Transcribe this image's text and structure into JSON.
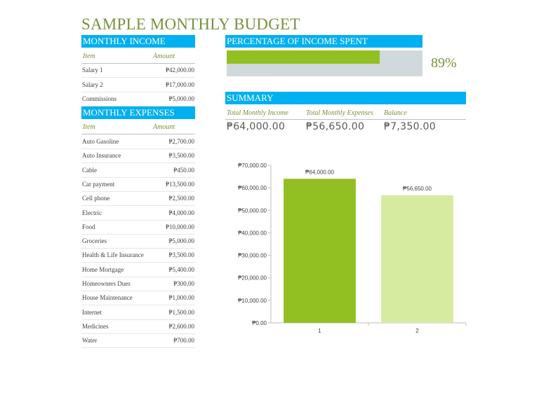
{
  "title": "SAMPLE MONTHLY BUDGET",
  "income": {
    "header": "MONTHLY INCOME",
    "col_item": "Item",
    "col_amount": "Amount",
    "rows": [
      {
        "item": "Salary 1",
        "amount": "₱42,000.00"
      },
      {
        "item": "Salary 2",
        "amount": "₱17,000.00"
      },
      {
        "item": "Commissions",
        "amount": "₱5,000.00"
      }
    ]
  },
  "expenses": {
    "header": "MONTHLY EXPENSES",
    "col_item": "Item",
    "col_amount": "Amount",
    "rows": [
      {
        "item": "Auto Gasoline",
        "amount": "₱2,700.00"
      },
      {
        "item": "Auto Insurance",
        "amount": "₱3,500.00"
      },
      {
        "item": "Cable",
        "amount": "₱450.00"
      },
      {
        "item": "Car payment",
        "amount": "₱13,500.00"
      },
      {
        "item": "Cell phone",
        "amount": "₱2,500.00"
      },
      {
        "item": "Electric",
        "amount": "₱4,000.00"
      },
      {
        "item": "Food",
        "amount": "₱10,000.00"
      },
      {
        "item": "Groceries",
        "amount": "₱5,000.00"
      },
      {
        "item": "Health & Life Insurance",
        "amount": "₱3,500.00"
      },
      {
        "item": "Home Mortgage",
        "amount": "₱5,400.00"
      },
      {
        "item": "Homeowners Dues",
        "amount": "₱300.00"
      },
      {
        "item": "House Maintenance",
        "amount": "₱1,000.00"
      },
      {
        "item": "Internet",
        "amount": "₱1,500.00"
      },
      {
        "item": "Medicines",
        "amount": "₱2,600.00"
      },
      {
        "item": "Water",
        "amount": "₱700.00"
      }
    ]
  },
  "percentage": {
    "header": "PERCENTAGE OF INCOME SPENT",
    "value_label": "89%",
    "fraction": 0.89
  },
  "summary": {
    "header": "SUMMARY",
    "labels": [
      "Total Monthly Income",
      "Total Monthly Expenses",
      "Balance"
    ],
    "values": [
      "₱64,000.00",
      "₱56,650.00",
      "₱7,350.00"
    ]
  },
  "colors": {
    "band": "#00b0f0",
    "accent_text": "#76923c",
    "bar_income": "#92c023",
    "bar_expenses": "#d7eba0",
    "track": "#d0d9dc"
  },
  "chart_data": {
    "type": "bar",
    "categories": [
      "1",
      "2"
    ],
    "values": [
      64000,
      56650
    ],
    "data_labels": [
      "₱64,000.00",
      "₱56,650.00"
    ],
    "ylim": [
      0,
      70000
    ],
    "yticks": [
      0,
      10000,
      20000,
      30000,
      40000,
      50000,
      60000,
      70000
    ],
    "ytick_labels": [
      "₱0.00",
      "₱10,000.00",
      "₱20,000.00",
      "₱30,000.00",
      "₱40,000.00",
      "₱50,000.00",
      "₱60,000.00",
      "₱70,000.00"
    ],
    "colors": [
      "#92c023",
      "#d7eba0"
    ],
    "grid": false,
    "title": "",
    "xlabel": "",
    "ylabel": ""
  }
}
